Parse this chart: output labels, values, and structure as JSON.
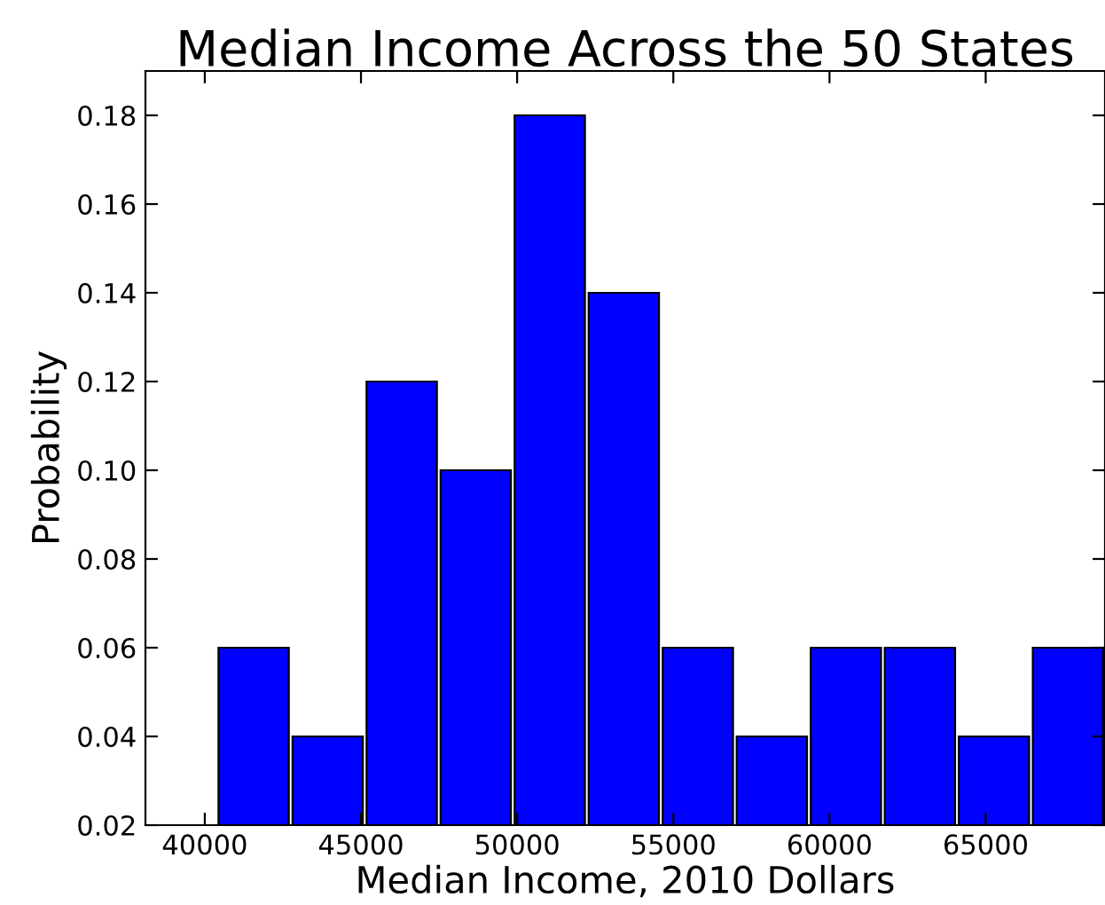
{
  "chart_data": {
    "type": "histogram",
    "title": "Median Income Across the 50 States",
    "xlabel": "Median Income, 2010 Dollars",
    "ylabel": "Probability",
    "bins": [
      40380,
      42750,
      45120,
      47490,
      49860,
      52230,
      54600,
      56970,
      59340,
      61710,
      64080,
      66450,
      68820
    ],
    "values": [
      0.06,
      0.04,
      0.12,
      0.1,
      0.18,
      0.14,
      0.06,
      0.04,
      0.06,
      0.06,
      0.04,
      0.06
    ],
    "color": "#0000ff",
    "xlim": [
      38100,
      68820
    ],
    "xticks": [
      40000,
      45000,
      50000,
      55000,
      60000,
      65000
    ],
    "ylim": [
      0.02,
      0.19
    ],
    "yticks": [
      0.02,
      0.04,
      0.06,
      0.08,
      {
        "value": 0.1,
        "label": "0.10"
      },
      0.12,
      0.14,
      0.16,
      0.18
    ],
    "grid": false,
    "legend": false
  }
}
